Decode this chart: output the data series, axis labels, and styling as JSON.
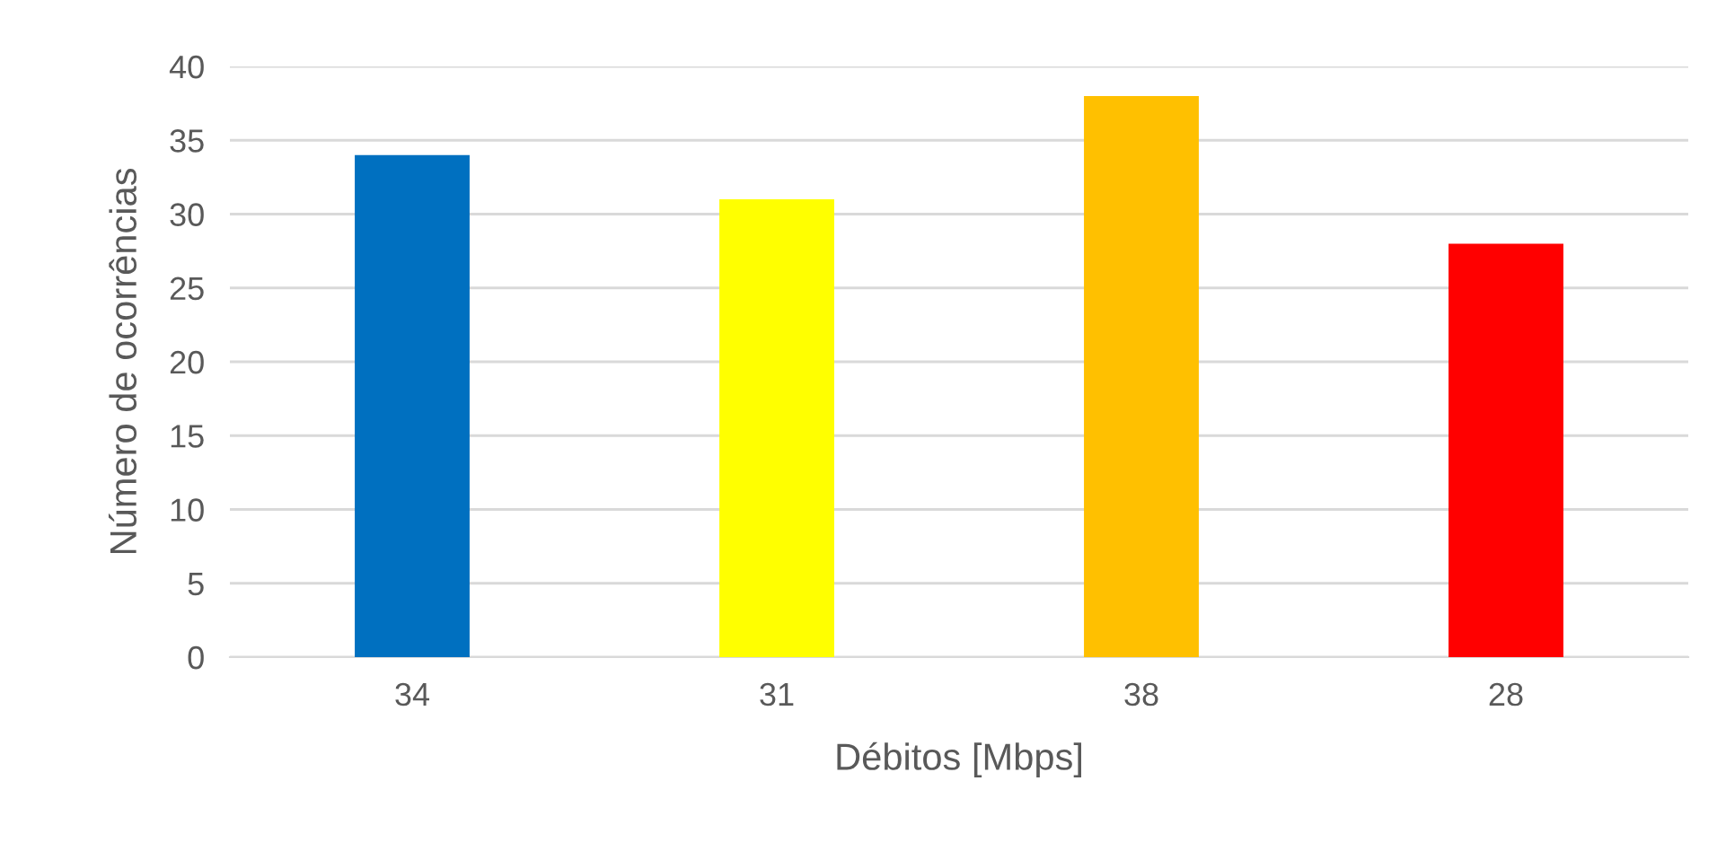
{
  "chart_data": {
    "type": "bar",
    "xlabel": "Débitos [Mbps]",
    "ylabel": "Número de ocorrências",
    "categories": [
      "34",
      "31",
      "38",
      "28"
    ],
    "values": [
      34,
      31,
      38,
      28
    ],
    "colors": [
      "#0070c0",
      "#ffff00",
      "#ffc000",
      "#ff0000"
    ],
    "ylim": [
      0,
      40
    ],
    "yticks": [
      0,
      5,
      10,
      15,
      20,
      25,
      30,
      35,
      40
    ],
    "grid": "y",
    "legend": false
  }
}
